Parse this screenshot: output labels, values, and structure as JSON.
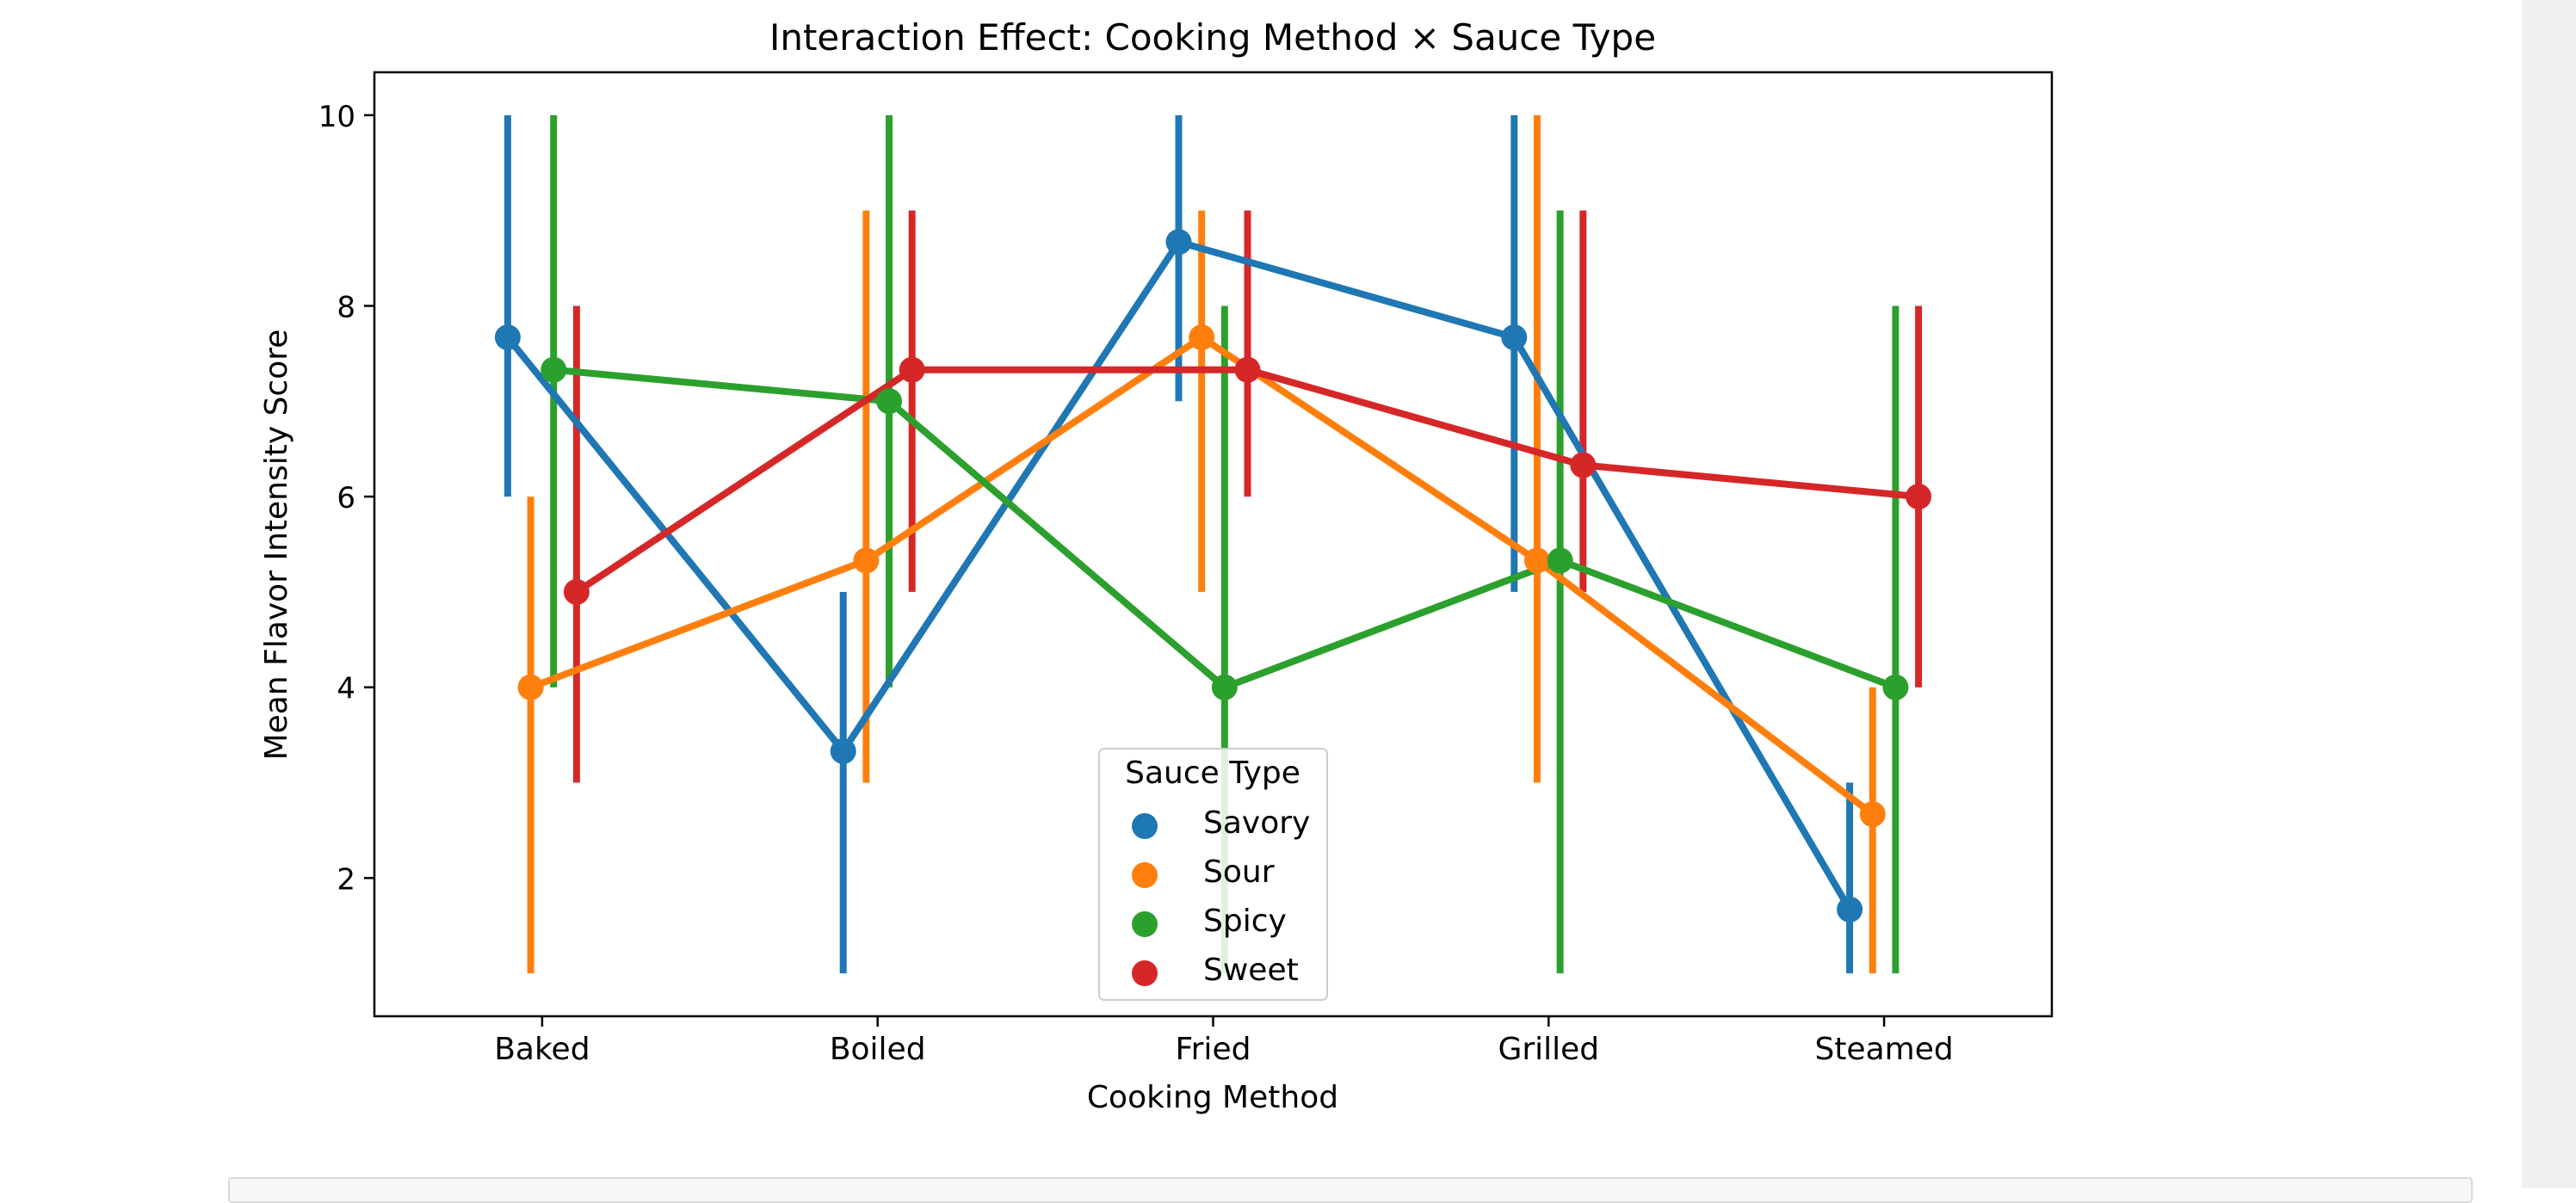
{
  "chart_data": {
    "type": "line",
    "title": "Interaction Effect: Cooking Method × Sauce Type",
    "xlabel": "Cooking Method",
    "ylabel": "Mean Flavor Intensity Score",
    "categories": [
      "Baked",
      "Boiled",
      "Fried",
      "Grilled",
      "Steamed"
    ],
    "ylim": [
      0.55,
      10.45
    ],
    "yticks": [
      2,
      4,
      6,
      8,
      10
    ],
    "grid": false,
    "legend": {
      "title": "Sauce Type",
      "placement": "lower-center"
    },
    "series": [
      {
        "name": "Savory",
        "color": "#1f77b4",
        "values": [
          7.67,
          3.33,
          8.67,
          7.67,
          1.67
        ],
        "ci_low": [
          6.0,
          1.0,
          7.0,
          5.0,
          1.0
        ],
        "ci_high": [
          10.0,
          5.0,
          10.0,
          10.0,
          3.0
        ]
      },
      {
        "name": "Sour",
        "color": "#ff7f0e",
        "values": [
          4.0,
          5.33,
          7.67,
          5.33,
          2.67
        ],
        "ci_low": [
          1.0,
          3.0,
          5.0,
          3.0,
          1.0
        ],
        "ci_high": [
          6.0,
          9.0,
          9.0,
          10.0,
          4.0
        ]
      },
      {
        "name": "Spicy",
        "color": "#2ca02c",
        "values": [
          7.33,
          7.0,
          4.0,
          5.33,
          4.0
        ],
        "ci_low": [
          4.0,
          4.0,
          1.0,
          1.0,
          1.0
        ],
        "ci_high": [
          10.0,
          10.0,
          8.0,
          9.0,
          8.0
        ]
      },
      {
        "name": "Sweet",
        "color": "#d62728",
        "values": [
          5.0,
          7.33,
          7.33,
          6.33,
          6.0
        ],
        "ci_low": [
          3.0,
          5.0,
          6.0,
          5.0,
          4.0
        ],
        "ci_high": [
          8.0,
          9.0,
          9.0,
          9.0,
          8.0
        ]
      }
    ]
  }
}
